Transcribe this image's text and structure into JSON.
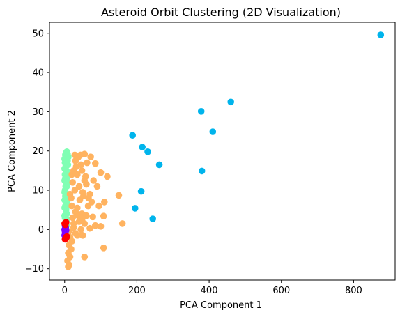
{
  "chart_data": {
    "type": "scatter",
    "title": "Asteroid Orbit Clustering (2D Visualization)",
    "xlabel": "PCA Component 1",
    "ylabel": "PCA Component 2",
    "xlim": [
      -42,
      915
    ],
    "ylim": [
      -12.9,
      52.8
    ],
    "xticks": [
      0,
      200,
      400,
      600,
      800
    ],
    "yticks": [
      -10,
      0,
      10,
      20,
      30,
      40,
      50
    ],
    "grid": false,
    "legend": "none",
    "series": [
      {
        "color": "#80ffb4",
        "points": [
          [
            0,
            18
          ],
          [
            2,
            19
          ],
          [
            4,
            19.5
          ],
          [
            6,
            19.8
          ],
          [
            8,
            19.2
          ],
          [
            1,
            17
          ],
          [
            3,
            16
          ],
          [
            5,
            15
          ],
          [
            7,
            14
          ],
          [
            2,
            13
          ],
          [
            4,
            12
          ],
          [
            6,
            11
          ],
          [
            1,
            10
          ],
          [
            3,
            9
          ],
          [
            5,
            8
          ],
          [
            7,
            7
          ],
          [
            2,
            6
          ],
          [
            4,
            5
          ],
          [
            6,
            4
          ],
          [
            1,
            3
          ],
          [
            3,
            2
          ],
          [
            5,
            1
          ],
          [
            8,
            17.5
          ],
          [
            9,
            16.5
          ],
          [
            10,
            18.5
          ],
          [
            0,
            15.5
          ],
          [
            0,
            12.5
          ],
          [
            0,
            9.5
          ],
          [
            0,
            7.5
          ],
          [
            0,
            5.5
          ],
          [
            0,
            3.5
          ],
          [
            2,
            1.5
          ],
          [
            6,
            2.5
          ],
          [
            8,
            9
          ],
          [
            9,
            12
          ],
          [
            10,
            14
          ],
          [
            7,
            18
          ],
          [
            4,
            17
          ],
          [
            1,
            14
          ],
          [
            3,
            11
          ],
          [
            5,
            13
          ],
          [
            2,
            8.5
          ],
          [
            4,
            6.8
          ],
          [
            6,
            5.8
          ]
        ]
      },
      {
        "color": "#ffb360",
        "points": [
          [
            28,
            19
          ],
          [
            38,
            18.5
          ],
          [
            55,
            19.2
          ],
          [
            72,
            18.5
          ],
          [
            30,
            17.5
          ],
          [
            45,
            16.5
          ],
          [
            62,
            17
          ],
          [
            25,
            15
          ],
          [
            35,
            14
          ],
          [
            48,
            15
          ],
          [
            58,
            13.5
          ],
          [
            80,
            12.5
          ],
          [
            100,
            14.5
          ],
          [
            118,
            13.5
          ],
          [
            22,
            12
          ],
          [
            40,
            11
          ],
          [
            60,
            11.5
          ],
          [
            90,
            11
          ],
          [
            28,
            10
          ],
          [
            50,
            9.5
          ],
          [
            70,
            9
          ],
          [
            18,
            8
          ],
          [
            42,
            7.5
          ],
          [
            75,
            7
          ],
          [
            150,
            8.7
          ],
          [
            110,
            7
          ],
          [
            20,
            6
          ],
          [
            35,
            5.5
          ],
          [
            65,
            6
          ],
          [
            95,
            6
          ],
          [
            30,
            4.5
          ],
          [
            48,
            4
          ],
          [
            60,
            3.5
          ],
          [
            78,
            3.2
          ],
          [
            108,
            3.4
          ],
          [
            22,
            3
          ],
          [
            40,
            2
          ],
          [
            55,
            1.5
          ],
          [
            85,
            1
          ],
          [
            100,
            0.8
          ],
          [
            160,
            1.5
          ],
          [
            25,
            0.5
          ],
          [
            45,
            0
          ],
          [
            70,
            0.3
          ],
          [
            12,
            -0.5
          ],
          [
            30,
            -1
          ],
          [
            50,
            -1.5
          ],
          [
            15,
            -2
          ],
          [
            20,
            -3
          ],
          [
            12,
            -4
          ],
          [
            18,
            -5
          ],
          [
            10,
            -6
          ],
          [
            15,
            -7
          ],
          [
            8,
            -8
          ],
          [
            12,
            -9
          ],
          [
            10,
            -9.5
          ],
          [
            55,
            -7
          ],
          [
            108,
            -4.7
          ],
          [
            35,
            -1.5
          ],
          [
            25,
            1.5
          ],
          [
            38,
            3.5
          ],
          [
            48,
            2.5
          ],
          [
            55,
            12.5
          ],
          [
            32,
            16
          ],
          [
            20,
            14
          ],
          [
            44,
            19
          ],
          [
            15,
            9
          ],
          [
            52,
            8.5
          ],
          [
            85,
            16.8
          ],
          [
            66,
            8
          ]
        ]
      },
      {
        "color": "#00b4ec",
        "points": [
          [
            875,
            49.6
          ],
          [
            460,
            32.5
          ],
          [
            378,
            30.1
          ],
          [
            410,
            24.9
          ],
          [
            188,
            24
          ],
          [
            215,
            21
          ],
          [
            230,
            19.8
          ],
          [
            262,
            16.5
          ],
          [
            380,
            14.9
          ],
          [
            212,
            9.7
          ],
          [
            195,
            5.4
          ],
          [
            244,
            2.7
          ]
        ]
      },
      {
        "color": "#7f00ff",
        "points": [
          [
            0,
            0
          ],
          [
            1,
            -0.5
          ],
          [
            2,
            -1
          ],
          [
            0,
            -1.5
          ],
          [
            3,
            0.5
          ],
          [
            1,
            1
          ],
          [
            4,
            -0.2
          ],
          [
            2,
            0.2
          ]
        ]
      },
      {
        "color": "#ff0000",
        "points": [
          [
            0,
            1.5
          ],
          [
            2,
            1.2
          ],
          [
            5,
            -2
          ],
          [
            1,
            -2.5
          ],
          [
            3,
            -2.2
          ],
          [
            6,
            -1.8
          ],
          [
            4,
            1.8
          ]
        ]
      }
    ]
  }
}
